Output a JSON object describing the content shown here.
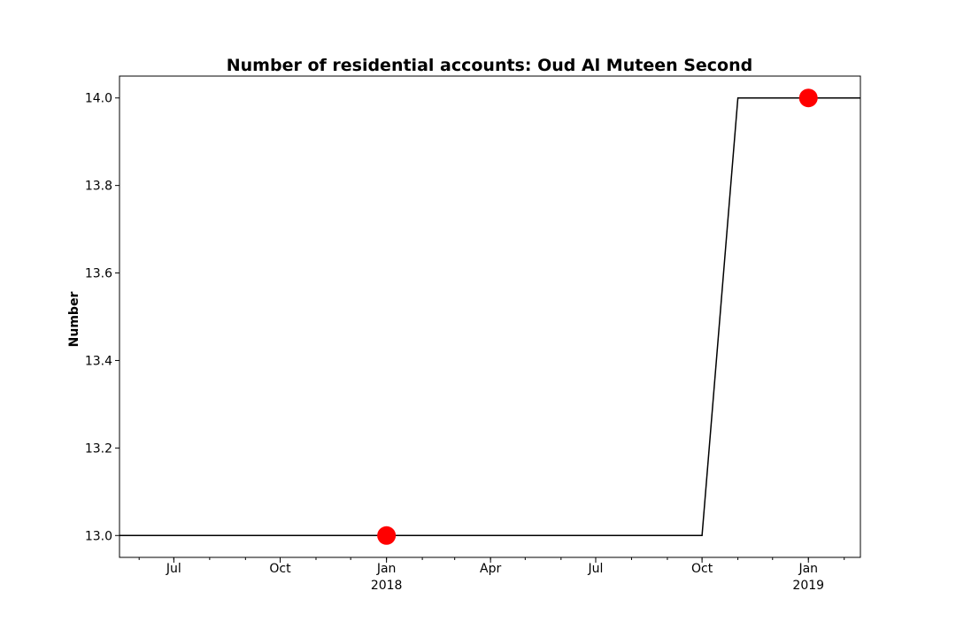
{
  "chart_data": {
    "type": "line",
    "title": "Number of residential accounts: Oud Al Muteen Second",
    "xlabel": "",
    "ylabel": "Number",
    "grid": false,
    "legend": "none",
    "xlim": [
      "2017-05-15",
      "2019-02-15"
    ],
    "ylim": [
      12.95,
      14.05
    ],
    "y_ticks": [
      13.0,
      13.2,
      13.4,
      13.6,
      13.8,
      14.0
    ],
    "y_tick_labels": [
      "13.0",
      "13.2",
      "13.4",
      "13.6",
      "13.8",
      "14.0"
    ],
    "x_ticks": [
      {
        "date": "2017-07-01",
        "label": "Jul",
        "sublabel": ""
      },
      {
        "date": "2017-10-01",
        "label": "Oct",
        "sublabel": ""
      },
      {
        "date": "2018-01-01",
        "label": "Jan",
        "sublabel": "2018"
      },
      {
        "date": "2018-04-01",
        "label": "Apr",
        "sublabel": ""
      },
      {
        "date": "2018-07-01",
        "label": "Jul",
        "sublabel": ""
      },
      {
        "date": "2018-10-01",
        "label": "Oct",
        "sublabel": ""
      },
      {
        "date": "2019-01-01",
        "label": "Jan",
        "sublabel": "2019"
      }
    ],
    "series": [
      {
        "color": "#000000",
        "points": [
          {
            "x": "2017-05-15",
            "y": 13
          },
          {
            "x": "2018-10-01",
            "y": 13
          },
          {
            "x": "2018-11-01",
            "y": 14
          },
          {
            "x": "2019-02-15",
            "y": 14
          }
        ]
      }
    ],
    "markers": [
      {
        "x": "2018-01-01",
        "y": 13,
        "color": "#ff0000"
      },
      {
        "x": "2019-01-01",
        "y": 14,
        "color": "#ff0000"
      }
    ]
  }
}
